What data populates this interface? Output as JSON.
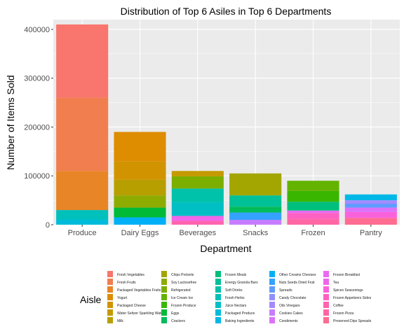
{
  "chart_data": {
    "type": "bar",
    "stacked": true,
    "title": "Distribution of Top 6 Asiles in Top 6 Departments",
    "xlabel": "Department",
    "ylabel": "Number of Items Sold",
    "legend_title": "Aisle",
    "legend_position": "bottom",
    "grid": true,
    "ylim": [
      0,
      420000
    ],
    "yticks": [
      0,
      100000,
      200000,
      300000,
      400000
    ],
    "ytick_labels": [
      "0",
      "100000",
      "200000",
      "300000",
      "400000"
    ],
    "categories": [
      "Produce",
      "Dairy Eggs",
      "Beverages",
      "Snacks",
      "Frozen",
      "Pantry"
    ],
    "legend_entries": [
      {
        "label": "Fresh Vegetables",
        "color": "#F8766D"
      },
      {
        "label": "Fresh Fruits",
        "color": "#F17E4F"
      },
      {
        "label": "Packaged Vegetables Fruits",
        "color": "#E88526"
      },
      {
        "label": "Yogurt",
        "color": "#DE8C00"
      },
      {
        "label": "Packaged Cheese",
        "color": "#D29300"
      },
      {
        "label": "Water Seltzer Sparkling Water",
        "color": "#C49A00"
      },
      {
        "label": "Milk",
        "color": "#B79F00"
      },
      {
        "label": "Chips Pretzels",
        "color": "#A3A500"
      },
      {
        "label": "Soy Lactosefree",
        "color": "#8EAB00"
      },
      {
        "label": "Refrigerated",
        "color": "#7CAE00"
      },
      {
        "label": "Ice Cream Ice",
        "color": "#63B300"
      },
      {
        "label": "Frozen Produce",
        "color": "#39B600"
      },
      {
        "label": "Eggs",
        "color": "#00BA38"
      },
      {
        "label": "Crackers",
        "color": "#00BC59"
      },
      {
        "label": "Frozen Meals",
        "color": "#00BF7D"
      },
      {
        "label": "Energy Granola Bars",
        "color": "#00C097"
      },
      {
        "label": "Soft Drinks",
        "color": "#00C1AA"
      },
      {
        "label": "Fresh Herbs",
        "color": "#00C0BC"
      },
      {
        "label": "Juice Nectars",
        "color": "#00BFC4"
      },
      {
        "label": "Packaged Produce",
        "color": "#00BBDA"
      },
      {
        "label": "Baking Ingredients",
        "color": "#00B8E7"
      },
      {
        "label": "Other Creams Cheeses",
        "color": "#00B0F6"
      },
      {
        "label": "Nuts Seeds Dried Fruit",
        "color": "#35A2FF"
      },
      {
        "label": "Spreads",
        "color": "#619CFF"
      },
      {
        "label": "Candy Chocolate",
        "color": "#8F91FF"
      },
      {
        "label": "Oils Vinegars",
        "color": "#A58AFF"
      },
      {
        "label": "Cookies Cakes",
        "color": "#C77CFF"
      },
      {
        "label": "Condiments",
        "color": "#DC71FA"
      },
      {
        "label": "Frozen Breakfast",
        "color": "#E76BF3"
      },
      {
        "label": "Tea",
        "color": "#F066EA"
      },
      {
        "label": "Spices Seasonings",
        "color": "#FA62DB"
      },
      {
        "label": "Frozen Appetizers Sides",
        "color": "#FF61C3"
      },
      {
        "label": "Coffee",
        "color": "#FF64B0"
      },
      {
        "label": "Frozen Pizza",
        "color": "#FF67A4"
      },
      {
        "label": "Preserved Dips Spreads",
        "color": "#FF6C91"
      }
    ],
    "bars": [
      {
        "category": "Produce",
        "segments": [
          {
            "aisle": "Packaged Produce",
            "value": 10000
          },
          {
            "aisle": "Fresh Herbs",
            "value": 20000
          },
          {
            "aisle": "Packaged Vegetables Fruits",
            "value": 80000
          },
          {
            "aisle": "Fresh Fruits",
            "value": 150000
          },
          {
            "aisle": "Fresh Vegetables",
            "value": 150000
          }
        ]
      },
      {
        "category": "Dairy Eggs",
        "segments": [
          {
            "aisle": "Other Creams Cheeses",
            "value": 15000
          },
          {
            "aisle": "Eggs",
            "value": 20000
          },
          {
            "aisle": "Soy Lactosefree",
            "value": 25000
          },
          {
            "aisle": "Milk",
            "value": 32000
          },
          {
            "aisle": "Packaged Cheese",
            "value": 38000
          },
          {
            "aisle": "Yogurt",
            "value": 60000
          }
        ]
      },
      {
        "category": "Beverages",
        "segments": [
          {
            "aisle": "Coffee",
            "value": 8000
          },
          {
            "aisle": "Tea",
            "value": 10000
          },
          {
            "aisle": "Juice Nectars",
            "value": 28000
          },
          {
            "aisle": "Soft Drinks",
            "value": 28000
          },
          {
            "aisle": "Refrigerated",
            "value": 25000
          },
          {
            "aisle": "Water Seltzer Sparkling Water",
            "value": 11000
          }
        ]
      },
      {
        "category": "Snacks",
        "segments": [
          {
            "aisle": "Cookies Cakes",
            "value": 10000
          },
          {
            "aisle": "Nuts Seeds Dried Fruit",
            "value": 15000
          },
          {
            "aisle": "Crackers",
            "value": 12000
          },
          {
            "aisle": "Energy Granola Bars",
            "value": 23000
          },
          {
            "aisle": "Chips Pretzels",
            "value": 45000
          }
        ]
      },
      {
        "category": "Frozen",
        "segments": [
          {
            "aisle": "Frozen Pizza",
            "value": 12000
          },
          {
            "aisle": "Frozen Appetizers Sides",
            "value": 12000
          },
          {
            "aisle": "Frozen Breakfast",
            "value": 5000
          },
          {
            "aisle": "Frozen Meals",
            "value": 18000
          },
          {
            "aisle": "Frozen Produce",
            "value": 22000
          },
          {
            "aisle": "Ice Cream Ice",
            "value": 21000
          }
        ]
      },
      {
        "category": "Pantry",
        "segments": [
          {
            "aisle": "Preserved Dips Spreads",
            "value": 14000
          },
          {
            "aisle": "Spices Seasonings",
            "value": 12000
          },
          {
            "aisle": "Condiments",
            "value": 9000
          },
          {
            "aisle": "Spreads",
            "value": 8000
          },
          {
            "aisle": "Oils Vinegars",
            "value": 7000
          },
          {
            "aisle": "Baking Ingredients",
            "value": 12000
          }
        ]
      }
    ]
  }
}
